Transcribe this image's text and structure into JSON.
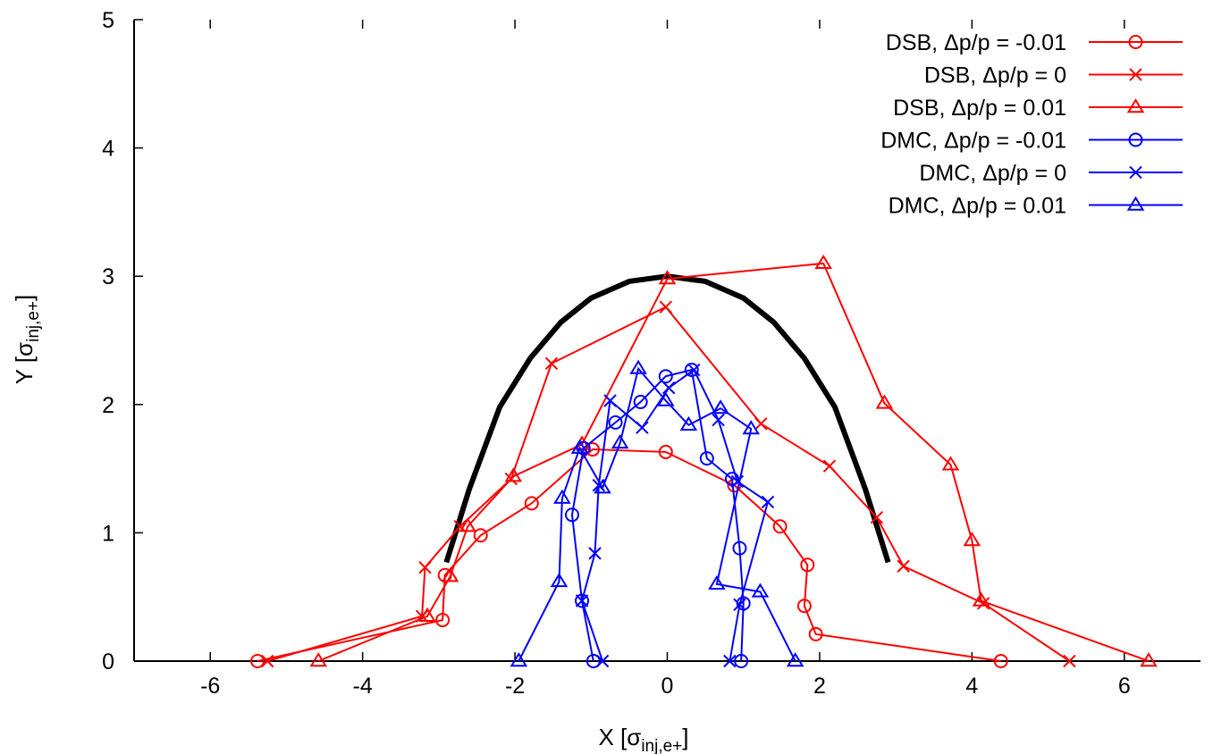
{
  "chart_data": {
    "type": "line",
    "title": "",
    "xlabel": {
      "main": "X [σ",
      "sub": "inj,e+",
      "close": "]"
    },
    "ylabel": {
      "main": "Y [σ",
      "sub": "inj,e+",
      "close": "]"
    },
    "xlim": [
      -7,
      7
    ],
    "ylim": [
      0,
      5
    ],
    "xticks": [
      "-6",
      "-4",
      "-2",
      "0",
      "2",
      "4",
      "6"
    ],
    "yticks": [
      "0",
      "1",
      "2",
      "3",
      "4",
      "5"
    ],
    "grid": false,
    "legend_position": "top-right",
    "series": [
      {
        "name": "DSB, Δp/p = -0.01",
        "color": "#ff0000",
        "marker": "circle",
        "points": [
          [
            -5.38,
            0
          ],
          [
            -2.95,
            0.32
          ],
          [
            -2.92,
            0.67
          ],
          [
            -2.45,
            0.98
          ],
          [
            -1.78,
            1.23
          ],
          [
            -0.98,
            1.65
          ],
          [
            -0.02,
            1.63
          ],
          [
            0.88,
            1.37
          ],
          [
            1.48,
            1.05
          ],
          [
            1.84,
            0.75
          ],
          [
            1.8,
            0.43
          ],
          [
            1.95,
            0.21
          ],
          [
            4.38,
            0
          ]
        ]
      },
      {
        "name": "DSB, Δp/p = 0",
        "color": "#ff0000",
        "marker": "cross",
        "points": [
          [
            -5.25,
            0
          ],
          [
            -3.22,
            0.35
          ],
          [
            -3.18,
            0.73
          ],
          [
            -2.72,
            1.05
          ],
          [
            -2.05,
            1.42
          ],
          [
            -1.52,
            2.32
          ],
          [
            -0.02,
            2.76
          ],
          [
            1.23,
            1.85
          ],
          [
            2.13,
            1.52
          ],
          [
            2.75,
            1.12
          ],
          [
            3.1,
            0.74
          ],
          [
            4.15,
            0.45
          ],
          [
            5.28,
            0
          ]
        ]
      },
      {
        "name": "DSB, Δp/p = 0.01",
        "color": "#ff0000",
        "marker": "triangle",
        "points": [
          [
            -4.58,
            0
          ],
          [
            -3.15,
            0.35
          ],
          [
            -2.85,
            0.66
          ],
          [
            -2.62,
            1.05
          ],
          [
            -2.02,
            1.44
          ],
          [
            -1.12,
            1.69
          ],
          [
            0.0,
            2.98
          ],
          [
            2.05,
            3.1
          ],
          [
            2.85,
            2.01
          ],
          [
            3.72,
            1.53
          ],
          [
            4.0,
            0.94
          ],
          [
            4.12,
            0.47
          ],
          [
            6.32,
            0
          ]
        ]
      },
      {
        "name": "DMC, Δp/p = -0.01",
        "color": "#0000ff",
        "marker": "circle",
        "points": [
          [
            -0.97,
            0
          ],
          [
            -1.12,
            0.47
          ],
          [
            -1.25,
            1.14
          ],
          [
            -1.1,
            1.66
          ],
          [
            -0.68,
            1.86
          ],
          [
            -0.35,
            2.02
          ],
          [
            -0.02,
            2.22
          ],
          [
            0.32,
            2.27
          ],
          [
            0.52,
            1.58
          ],
          [
            0.85,
            1.42
          ],
          [
            0.95,
            0.88
          ],
          [
            1.0,
            0.45
          ],
          [
            0.97,
            0
          ]
        ]
      },
      {
        "name": "DMC, Δp/p = 0",
        "color": "#0000ff",
        "marker": "cross",
        "points": [
          [
            -0.85,
            0
          ],
          [
            -1.12,
            0.47
          ],
          [
            -0.95,
            0.84
          ],
          [
            -0.9,
            1.37
          ],
          [
            -0.75,
            2.03
          ],
          [
            -0.33,
            1.82
          ],
          [
            0.02,
            2.13
          ],
          [
            0.35,
            2.27
          ],
          [
            0.67,
            1.88
          ],
          [
            0.92,
            1.4
          ],
          [
            1.32,
            1.24
          ],
          [
            0.95,
            0.44
          ],
          [
            0.82,
            0
          ]
        ]
      },
      {
        "name": "DMC, Δp/p = 0.01",
        "color": "#0000ff",
        "marker": "triangle",
        "points": [
          [
            -1.95,
            0
          ],
          [
            -1.42,
            0.62
          ],
          [
            -1.38,
            1.27
          ],
          [
            -1.15,
            1.66
          ],
          [
            -0.85,
            1.35
          ],
          [
            -0.62,
            1.7
          ],
          [
            -0.38,
            2.28
          ],
          [
            -0.02,
            2.03
          ],
          [
            0.28,
            1.84
          ],
          [
            0.7,
            1.97
          ],
          [
            1.1,
            1.81
          ],
          [
            0.65,
            0.6
          ],
          [
            1.22,
            0.54
          ],
          [
            1.68,
            0
          ]
        ]
      }
    ],
    "curve": {
      "color": "#000000",
      "points": [
        [
          -2.9,
          0.77
        ],
        [
          -2.6,
          1.34
        ],
        [
          -2.2,
          1.98
        ],
        [
          -1.8,
          2.36
        ],
        [
          -1.4,
          2.64
        ],
        [
          -1.0,
          2.83
        ],
        [
          -0.5,
          2.96
        ],
        [
          0.0,
          3.0
        ],
        [
          0.5,
          2.96
        ],
        [
          1.0,
          2.83
        ],
        [
          1.4,
          2.64
        ],
        [
          1.8,
          2.36
        ],
        [
          2.2,
          1.98
        ],
        [
          2.6,
          1.34
        ],
        [
          2.9,
          0.77
        ]
      ]
    }
  }
}
